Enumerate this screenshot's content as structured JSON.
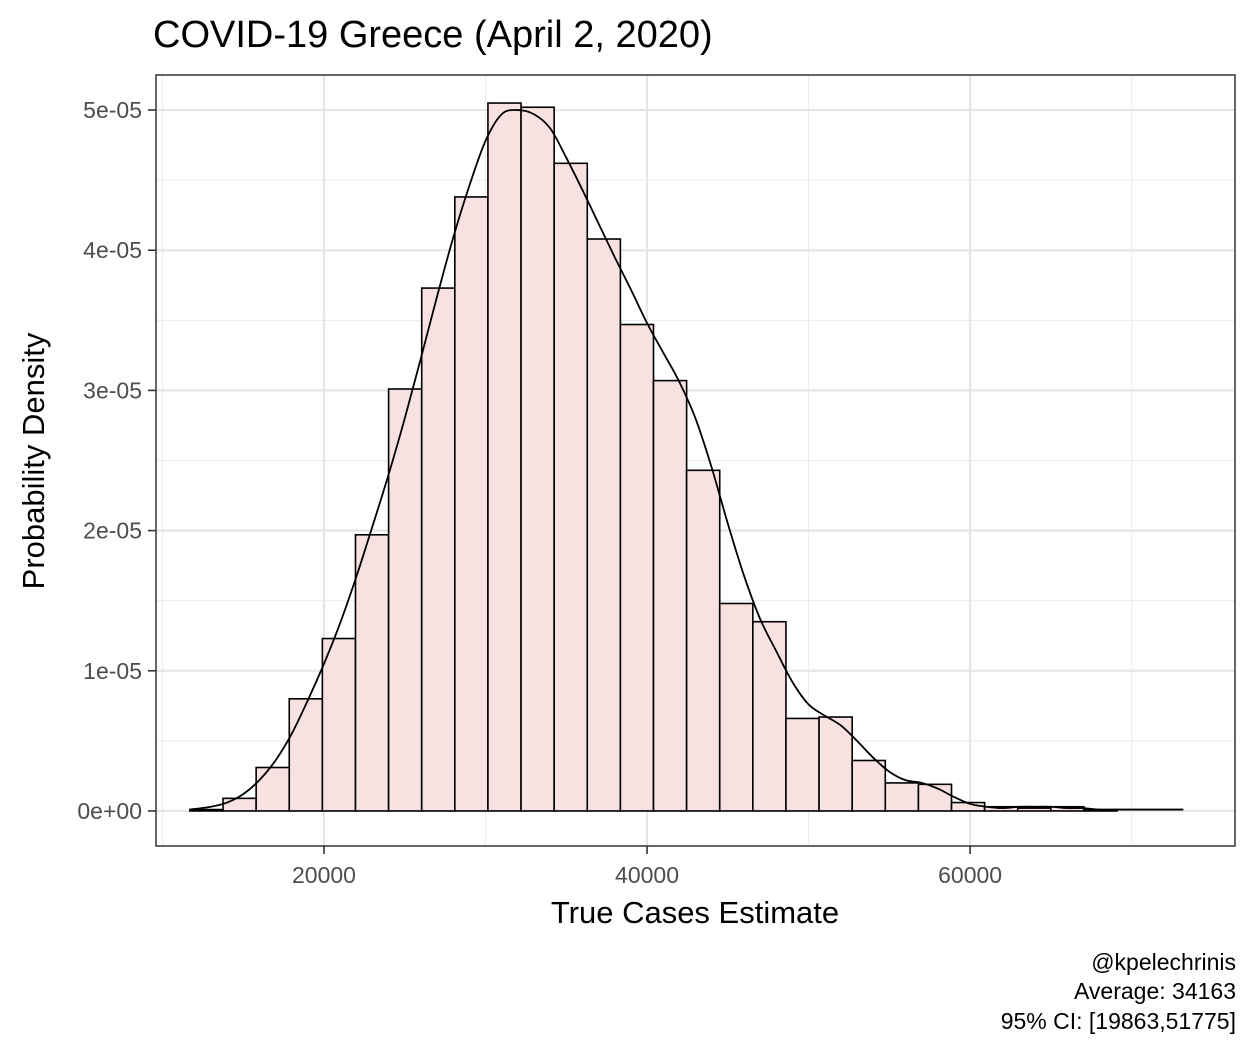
{
  "chart_data": {
    "type": "histogram",
    "title": "COVID-19 Greece (April 2, 2020)",
    "xlabel": "True Cases Estimate",
    "ylabel": "Probability Density",
    "xlim": [
      9600,
      76400
    ],
    "ylim": [
      -2.5e-06,
      5.25e-05
    ],
    "x_ticks": [
      20000,
      40000,
      60000
    ],
    "x_tick_labels": [
      "20000",
      "40000",
      "60000"
    ],
    "y_ticks": [
      0,
      1e-05,
      2e-05,
      3e-05,
      4e-05,
      5e-05
    ],
    "y_tick_labels": [
      "0e+00",
      "1e-05",
      "2e-05",
      "3e-05",
      "4e-05",
      "5e-05"
    ],
    "grid": true,
    "bar_fill": "#f8e1e1",
    "bar_outline": "#000000",
    "bin_width": 2050,
    "bins": [
      {
        "x0": 11700,
        "x1": 13750,
        "density": 1e-07
      },
      {
        "x0": 13750,
        "x1": 15800,
        "density": 9e-07
      },
      {
        "x0": 15800,
        "x1": 17850,
        "density": 3.1e-06
      },
      {
        "x0": 17850,
        "x1": 19900,
        "density": 8e-06
      },
      {
        "x0": 19900,
        "x1": 21950,
        "density": 1.23e-05
      },
      {
        "x0": 21950,
        "x1": 24000,
        "density": 1.97e-05
      },
      {
        "x0": 24000,
        "x1": 26050,
        "density": 3.01e-05
      },
      {
        "x0": 26050,
        "x1": 28100,
        "density": 3.73e-05
      },
      {
        "x0": 28100,
        "x1": 30150,
        "density": 4.38e-05
      },
      {
        "x0": 30150,
        "x1": 32200,
        "density": 5.05e-05
      },
      {
        "x0": 32200,
        "x1": 34250,
        "density": 5.02e-05
      },
      {
        "x0": 34250,
        "x1": 36300,
        "density": 4.62e-05
      },
      {
        "x0": 36300,
        "x1": 38350,
        "density": 4.08e-05
      },
      {
        "x0": 38350,
        "x1": 40400,
        "density": 3.47e-05
      },
      {
        "x0": 40400,
        "x1": 42450,
        "density": 3.07e-05
      },
      {
        "x0": 42450,
        "x1": 44500,
        "density": 2.43e-05
      },
      {
        "x0": 44500,
        "x1": 46550,
        "density": 1.48e-05
      },
      {
        "x0": 46550,
        "x1": 48600,
        "density": 1.35e-05
      },
      {
        "x0": 48600,
        "x1": 50650,
        "density": 6.6e-06
      },
      {
        "x0": 50650,
        "x1": 52700,
        "density": 6.7e-06
      },
      {
        "x0": 52700,
        "x1": 54750,
        "density": 3.6e-06
      },
      {
        "x0": 54750,
        "x1": 56800,
        "density": 2e-06
      },
      {
        "x0": 56800,
        "x1": 58850,
        "density": 1.9e-06
      },
      {
        "x0": 58850,
        "x1": 60900,
        "density": 6e-07
      },
      {
        "x0": 60900,
        "x1": 62950,
        "density": 3e-07
      },
      {
        "x0": 62950,
        "x1": 65000,
        "density": 2e-07
      },
      {
        "x0": 65000,
        "x1": 67050,
        "density": 3e-07
      },
      {
        "x0": 67050,
        "x1": 69100,
        "density": 1e-07
      },
      {
        "x0": 69100,
        "x1": 71150,
        "density": 0
      },
      {
        "x0": 71150,
        "x1": 73200,
        "density": 0
      }
    ],
    "density_curve": {
      "x": [
        11700,
        13000,
        14000,
        15000,
        16000,
        17000,
        18000,
        19000,
        20000,
        21000,
        22000,
        23000,
        24000,
        25000,
        26000,
        27000,
        28000,
        29000,
        30000,
        31000,
        32000,
        33000,
        34000,
        35000,
        36000,
        37000,
        38000,
        39000,
        40000,
        41000,
        42000,
        43000,
        44000,
        45000,
        46000,
        47000,
        48000,
        49000,
        50000,
        51000,
        52000,
        53000,
        54000,
        55000,
        56000,
        57000,
        58000,
        59000,
        60000,
        61000,
        62000,
        63000,
        64000,
        65000,
        66000,
        67000,
        68000,
        69000,
        70000,
        71000,
        72000,
        73200
      ],
      "y": [
        1e-07,
        3e-07,
        6e-07,
        1.2e-06,
        2.2e-06,
        3.6e-06,
        5.5e-06,
        7.9e-06,
        1.05e-05,
        1.34e-05,
        1.67e-05,
        2.03e-05,
        2.4e-05,
        2.8e-05,
        3.23e-05,
        3.67e-05,
        4.09e-05,
        4.46e-05,
        4.78e-05,
        4.97e-05,
        5e-05,
        4.97e-05,
        4.87e-05,
        4.66e-05,
        4.43e-05,
        4.19e-05,
        3.95e-05,
        3.72e-05,
        3.48e-05,
        3.27e-05,
        3.06e-05,
        2.8e-05,
        2.45e-05,
        2.05e-05,
        1.68e-05,
        1.37e-05,
        1.14e-05,
        9.2e-06,
        7.6e-06,
        6.8e-06,
        6.1e-06,
        5e-06,
        3.8e-06,
        2.8e-06,
        2.2e-06,
        2e-06,
        1.6e-06,
        1e-06,
        5e-07,
        3e-07,
        2e-07,
        3e-07,
        3e-07,
        3e-07,
        2e-07,
        2e-07,
        1e-07,
        1e-07,
        1e-07,
        1e-07,
        1e-07,
        1e-07
      ]
    }
  },
  "caption": {
    "handle": "@kpelechrinis",
    "average": "Average: 34163",
    "ci": "95% CI: [19863,51775]"
  }
}
